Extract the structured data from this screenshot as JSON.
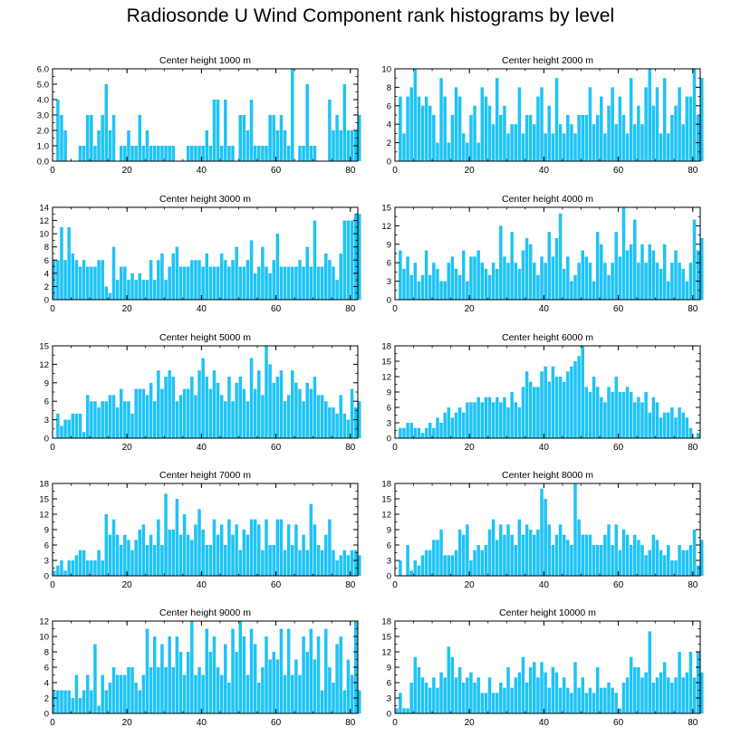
{
  "title": "Radiosonde U Wind Component rank histograms by level",
  "chart_data": [
    {
      "type": "bar",
      "title": "Center height 1000 m",
      "xlim": [
        0,
        82
      ],
      "ylim": [
        0,
        6
      ],
      "xticks": [
        0,
        20,
        40,
        60,
        80
      ],
      "xtick_labels": [
        "0",
        "20",
        "40",
        "60",
        "80"
      ],
      "yticks": [
        0,
        1,
        2,
        3,
        4,
        5,
        6
      ],
      "ytick_labels": [
        "0.0",
        "1.0",
        "2.0",
        "3.0",
        "4.0",
        "5.0",
        "6.0"
      ],
      "x_start": 0,
      "values": [
        0,
        4,
        3,
        2,
        0,
        0,
        0,
        1,
        1,
        3,
        3,
        1,
        2,
        3,
        5,
        2,
        3,
        0,
        1,
        1,
        2,
        1,
        1,
        3,
        1,
        2,
        1,
        1,
        1,
        1,
        1,
        1,
        1,
        0,
        0,
        0,
        1,
        1,
        1,
        1,
        1,
        2,
        1,
        4,
        4,
        1,
        4,
        1,
        1,
        0,
        3,
        3,
        2,
        4,
        1,
        1,
        1,
        1,
        3,
        3,
        2,
        3,
        2,
        1,
        6,
        0,
        1,
        1,
        5,
        1,
        1,
        0,
        0,
        0,
        4,
        2,
        3,
        2,
        5,
        2,
        2,
        2,
        3
      ]
    },
    {
      "type": "bar",
      "title": "Center height 2000 m",
      "xlim": [
        0,
        82
      ],
      "ylim": [
        0,
        10
      ],
      "xticks": [
        0,
        20,
        40,
        60,
        80
      ],
      "xtick_labels": [
        "0",
        "20",
        "40",
        "60",
        "80"
      ],
      "yticks": [
        0,
        2,
        4,
        6,
        8,
        10
      ],
      "ytick_labels": [
        "0",
        "2",
        "4",
        "6",
        "8",
        "10"
      ],
      "x_start": 0,
      "values": [
        0,
        7,
        3,
        7,
        8,
        10,
        7,
        6,
        7,
        6,
        5,
        2,
        9,
        7,
        2,
        5,
        8,
        7,
        3,
        2,
        5,
        6,
        2,
        8,
        7,
        6,
        4,
        9,
        5,
        6,
        3,
        4,
        4,
        8,
        3,
        5,
        5,
        4,
        7,
        8,
        3,
        6,
        3,
        9,
        4,
        3,
        5,
        4,
        3,
        5,
        5,
        5,
        8,
        4,
        5,
        7,
        3,
        6,
        8,
        4,
        7,
        5,
        3,
        9,
        4,
        6,
        4,
        8,
        10,
        6,
        8,
        3,
        9,
        3,
        5,
        6,
        8,
        4,
        7,
        7,
        10,
        5,
        9
      ]
    },
    {
      "type": "bar",
      "title": "Center height 3000 m",
      "xlim": [
        0,
        82
      ],
      "ylim": [
        0,
        14
      ],
      "xticks": [
        0,
        20,
        40,
        60,
        80
      ],
      "xtick_labels": [
        "0",
        "20",
        "40",
        "60",
        "80"
      ],
      "yticks": [
        0,
        2,
        4,
        6,
        8,
        10,
        12,
        14
      ],
      "ytick_labels": [
        "0",
        "2",
        "4",
        "6",
        "8",
        "10",
        "12",
        "14"
      ],
      "x_start": 0,
      "values": [
        6,
        6,
        11,
        6,
        11,
        7,
        6,
        5,
        6,
        5,
        5,
        5,
        6,
        6,
        2,
        1,
        8,
        3,
        5,
        5,
        3,
        4,
        3,
        4,
        3,
        3,
        6,
        3,
        6,
        7,
        3,
        5,
        7,
        8,
        5,
        5,
        5,
        6,
        6,
        6,
        5,
        7,
        5,
        5,
        5,
        7,
        6,
        5,
        6,
        8,
        5,
        5,
        6,
        9,
        4,
        5,
        8,
        5,
        4,
        6,
        10,
        5,
        5,
        5,
        5,
        5,
        6,
        5,
        8,
        5,
        12,
        5,
        5,
        7,
        6,
        5,
        3,
        7,
        12,
        12,
        12,
        13,
        13
      ]
    },
    {
      "type": "bar",
      "title": "Center height 4000 m",
      "xlim": [
        0,
        82
      ],
      "ylim": [
        0,
        15
      ],
      "xticks": [
        0,
        20,
        40,
        60,
        80
      ],
      "xtick_labels": [
        "0",
        "20",
        "40",
        "60",
        "80"
      ],
      "yticks": [
        0,
        3,
        6,
        9,
        12,
        15
      ],
      "ytick_labels": [
        "0",
        "3",
        "6",
        "9",
        "12",
        "15"
      ],
      "x_start": 0,
      "values": [
        0,
        8,
        5,
        7,
        4,
        6,
        3,
        4,
        8,
        4,
        6,
        5,
        3,
        3,
        6,
        7,
        5,
        4,
        8,
        3,
        7,
        7,
        8,
        6,
        5,
        4,
        6,
        5,
        12,
        7,
        6,
        11,
        6,
        5,
        8,
        10,
        9,
        6,
        4,
        7,
        6,
        11,
        7,
        10,
        14,
        5,
        7,
        3,
        4,
        6,
        8,
        7,
        6,
        3,
        11,
        9,
        6,
        4,
        6,
        11,
        7,
        15,
        8,
        9,
        13,
        6,
        9,
        6,
        9,
        8,
        6,
        5,
        9,
        3,
        6,
        8,
        6,
        5,
        3,
        6,
        13,
        8,
        10
      ]
    },
    {
      "type": "bar",
      "title": "Center height 5000 m",
      "xlim": [
        0,
        82
      ],
      "ylim": [
        0,
        15
      ],
      "xticks": [
        0,
        20,
        40,
        60,
        80
      ],
      "xtick_labels": [
        "0",
        "20",
        "40",
        "60",
        "80"
      ],
      "yticks": [
        0,
        3,
        6,
        9,
        12,
        15
      ],
      "ytick_labels": [
        "0",
        "3",
        "6",
        "9",
        "12",
        "15"
      ],
      "x_start": 0,
      "values": [
        0,
        4,
        2,
        3,
        3,
        4,
        4,
        4,
        1,
        7,
        6,
        6,
        5,
        6,
        6,
        7,
        7,
        5,
        8,
        6,
        6,
        4,
        8,
        8,
        8,
        7,
        9,
        6,
        11,
        8,
        10,
        11,
        10,
        6,
        7,
        8,
        8,
        10,
        7,
        11,
        13,
        10,
        8,
        11,
        9,
        7,
        6,
        10,
        6,
        9,
        10,
        8,
        6,
        13,
        8,
        11,
        7,
        15,
        12,
        9,
        10,
        11,
        6,
        7,
        11,
        9,
        8,
        6,
        9,
        8,
        10,
        7,
        7,
        6,
        5,
        5,
        4,
        7,
        4,
        3,
        8,
        5,
        6
      ]
    },
    {
      "type": "bar",
      "title": "Center height 6000 m",
      "xlim": [
        0,
        82
      ],
      "ylim": [
        0,
        18
      ],
      "xticks": [
        0,
        20,
        40,
        60,
        80
      ],
      "xtick_labels": [
        "0",
        "20",
        "40",
        "60",
        "80"
      ],
      "yticks": [
        0,
        3,
        6,
        9,
        12,
        15,
        18
      ],
      "ytick_labels": [
        "0",
        "3",
        "6",
        "9",
        "12",
        "15",
        "18"
      ],
      "x_start": 0,
      "values": [
        0,
        2,
        2,
        3,
        3,
        2,
        2,
        1,
        2,
        3,
        2,
        4,
        3,
        5,
        6,
        4,
        5,
        6,
        5,
        7,
        7,
        7,
        8,
        7,
        8,
        8,
        7,
        8,
        7,
        8,
        6,
        9,
        7,
        6,
        10,
        13,
        11,
        10,
        10,
        13,
        14,
        11,
        14,
        12,
        12,
        11,
        13,
        14,
        15,
        16,
        18,
        10,
        9,
        12,
        10,
        8,
        7,
        10,
        9,
        12,
        9,
        9,
        10,
        9,
        7,
        8,
        7,
        9,
        5,
        8,
        7,
        4,
        5,
        5,
        6,
        4,
        6,
        5,
        4,
        2,
        0,
        1,
        0
      ]
    },
    {
      "type": "bar",
      "title": "Center height 7000 m",
      "xlim": [
        0,
        82
      ],
      "ylim": [
        0,
        18
      ],
      "xticks": [
        0,
        20,
        40,
        60,
        80
      ],
      "xtick_labels": [
        "0",
        "20",
        "40",
        "60",
        "80"
      ],
      "yticks": [
        0,
        3,
        6,
        9,
        12,
        15,
        18
      ],
      "ytick_labels": [
        "0",
        "3",
        "6",
        "9",
        "12",
        "15",
        "18"
      ],
      "x_start": 0,
      "values": [
        1,
        2,
        3,
        1,
        3,
        3,
        4,
        5,
        5,
        3,
        3,
        3,
        5,
        3,
        12,
        8,
        11,
        8,
        6,
        8,
        7,
        5,
        7,
        9,
        10,
        6,
        8,
        6,
        11,
        6,
        16,
        9,
        9,
        15,
        8,
        12,
        8,
        7,
        10,
        13,
        9,
        6,
        6,
        11,
        8,
        10,
        6,
        11,
        8,
        10,
        5,
        9,
        8,
        11,
        11,
        10,
        5,
        11,
        6,
        6,
        11,
        11,
        5,
        10,
        6,
        10,
        5,
        8,
        5,
        14,
        10,
        6,
        5,
        8,
        11,
        5,
        3,
        4,
        5,
        4,
        5,
        5,
        4
      ]
    },
    {
      "type": "bar",
      "title": "Center height 8000 m",
      "xlim": [
        0,
        82
      ],
      "ylim": [
        0,
        18
      ],
      "xticks": [
        0,
        20,
        40,
        60,
        80
      ],
      "xtick_labels": [
        "0",
        "20",
        "40",
        "60",
        "80"
      ],
      "yticks": [
        0,
        3,
        6,
        9,
        12,
        15,
        18
      ],
      "ytick_labels": [
        "0",
        "3",
        "6",
        "9",
        "12",
        "15",
        "18"
      ],
      "x_start": 0,
      "values": [
        0,
        3,
        0,
        6,
        1,
        3,
        2,
        4,
        5,
        5,
        7,
        7,
        9,
        4,
        4,
        4,
        5,
        9,
        8,
        10,
        3,
        5,
        6,
        5,
        6,
        9,
        11,
        7,
        10,
        8,
        10,
        8,
        6,
        11,
        8,
        10,
        9,
        8,
        9,
        17,
        15,
        10,
        6,
        8,
        10,
        8,
        7,
        6,
        18,
        11,
        8,
        8,
        8,
        6,
        6,
        6,
        8,
        10,
        6,
        10,
        5,
        9,
        8,
        6,
        8,
        7,
        6,
        4,
        5,
        8,
        7,
        5,
        4,
        6,
        3,
        3,
        6,
        5,
        5,
        6,
        9,
        2,
        7
      ]
    },
    {
      "type": "bar",
      "title": "Center height 9000 m",
      "xlim": [
        0,
        82
      ],
      "ylim": [
        0,
        12
      ],
      "xticks": [
        0,
        20,
        40,
        60,
        80
      ],
      "xtick_labels": [
        "0",
        "20",
        "40",
        "60",
        "80"
      ],
      "yticks": [
        0,
        2,
        4,
        6,
        8,
        10,
        12
      ],
      "ytick_labels": [
        "0",
        "2",
        "4",
        "6",
        "8",
        "10",
        "12"
      ],
      "x_start": 0,
      "values": [
        3,
        3,
        3,
        3,
        3,
        2,
        5,
        2,
        3,
        5,
        3,
        9,
        1,
        5,
        3,
        4,
        6,
        5,
        5,
        5,
        6,
        6,
        4,
        3,
        5,
        11,
        6,
        10,
        6,
        9,
        6,
        10,
        6,
        10,
        8,
        5,
        8,
        12,
        5,
        6,
        5,
        11,
        8,
        10,
        6,
        5,
        9,
        4,
        11,
        8,
        12,
        10,
        5,
        11,
        9,
        4,
        6,
        10,
        7,
        8,
        7,
        11,
        5,
        11,
        5,
        7,
        5,
        10,
        8,
        11,
        7,
        10,
        3,
        11,
        6,
        4,
        9,
        10,
        3,
        7,
        5,
        12,
        3
      ]
    },
    {
      "type": "bar",
      "title": "Center height 10000 m",
      "xlim": [
        0,
        82
      ],
      "ylim": [
        0,
        18
      ],
      "xticks": [
        0,
        20,
        40,
        60,
        80
      ],
      "xtick_labels": [
        "0",
        "20",
        "40",
        "60",
        "80"
      ],
      "yticks": [
        0,
        3,
        6,
        9,
        12,
        15,
        18
      ],
      "ytick_labels": [
        "0",
        "3",
        "6",
        "9",
        "12",
        "15",
        "18"
      ],
      "x_start": 0,
      "values": [
        1,
        4,
        1,
        1,
        6,
        11,
        9,
        7,
        6,
        5,
        7,
        5,
        8,
        7,
        13,
        11,
        7,
        9,
        6,
        7,
        8,
        6,
        7,
        4,
        4,
        7,
        4,
        4,
        6,
        5,
        9,
        5,
        7,
        8,
        11,
        6,
        9,
        10,
        7,
        10,
        8,
        5,
        9,
        8,
        5,
        7,
        5,
        4,
        10,
        5,
        7,
        4,
        5,
        4,
        9,
        5,
        5,
        6,
        5,
        4,
        1,
        6,
        7,
        11,
        9,
        9,
        7,
        8,
        16,
        6,
        7,
        8,
        10,
        7,
        6,
        7,
        12,
        7,
        8,
        12,
        7,
        12,
        8
      ]
    }
  ]
}
